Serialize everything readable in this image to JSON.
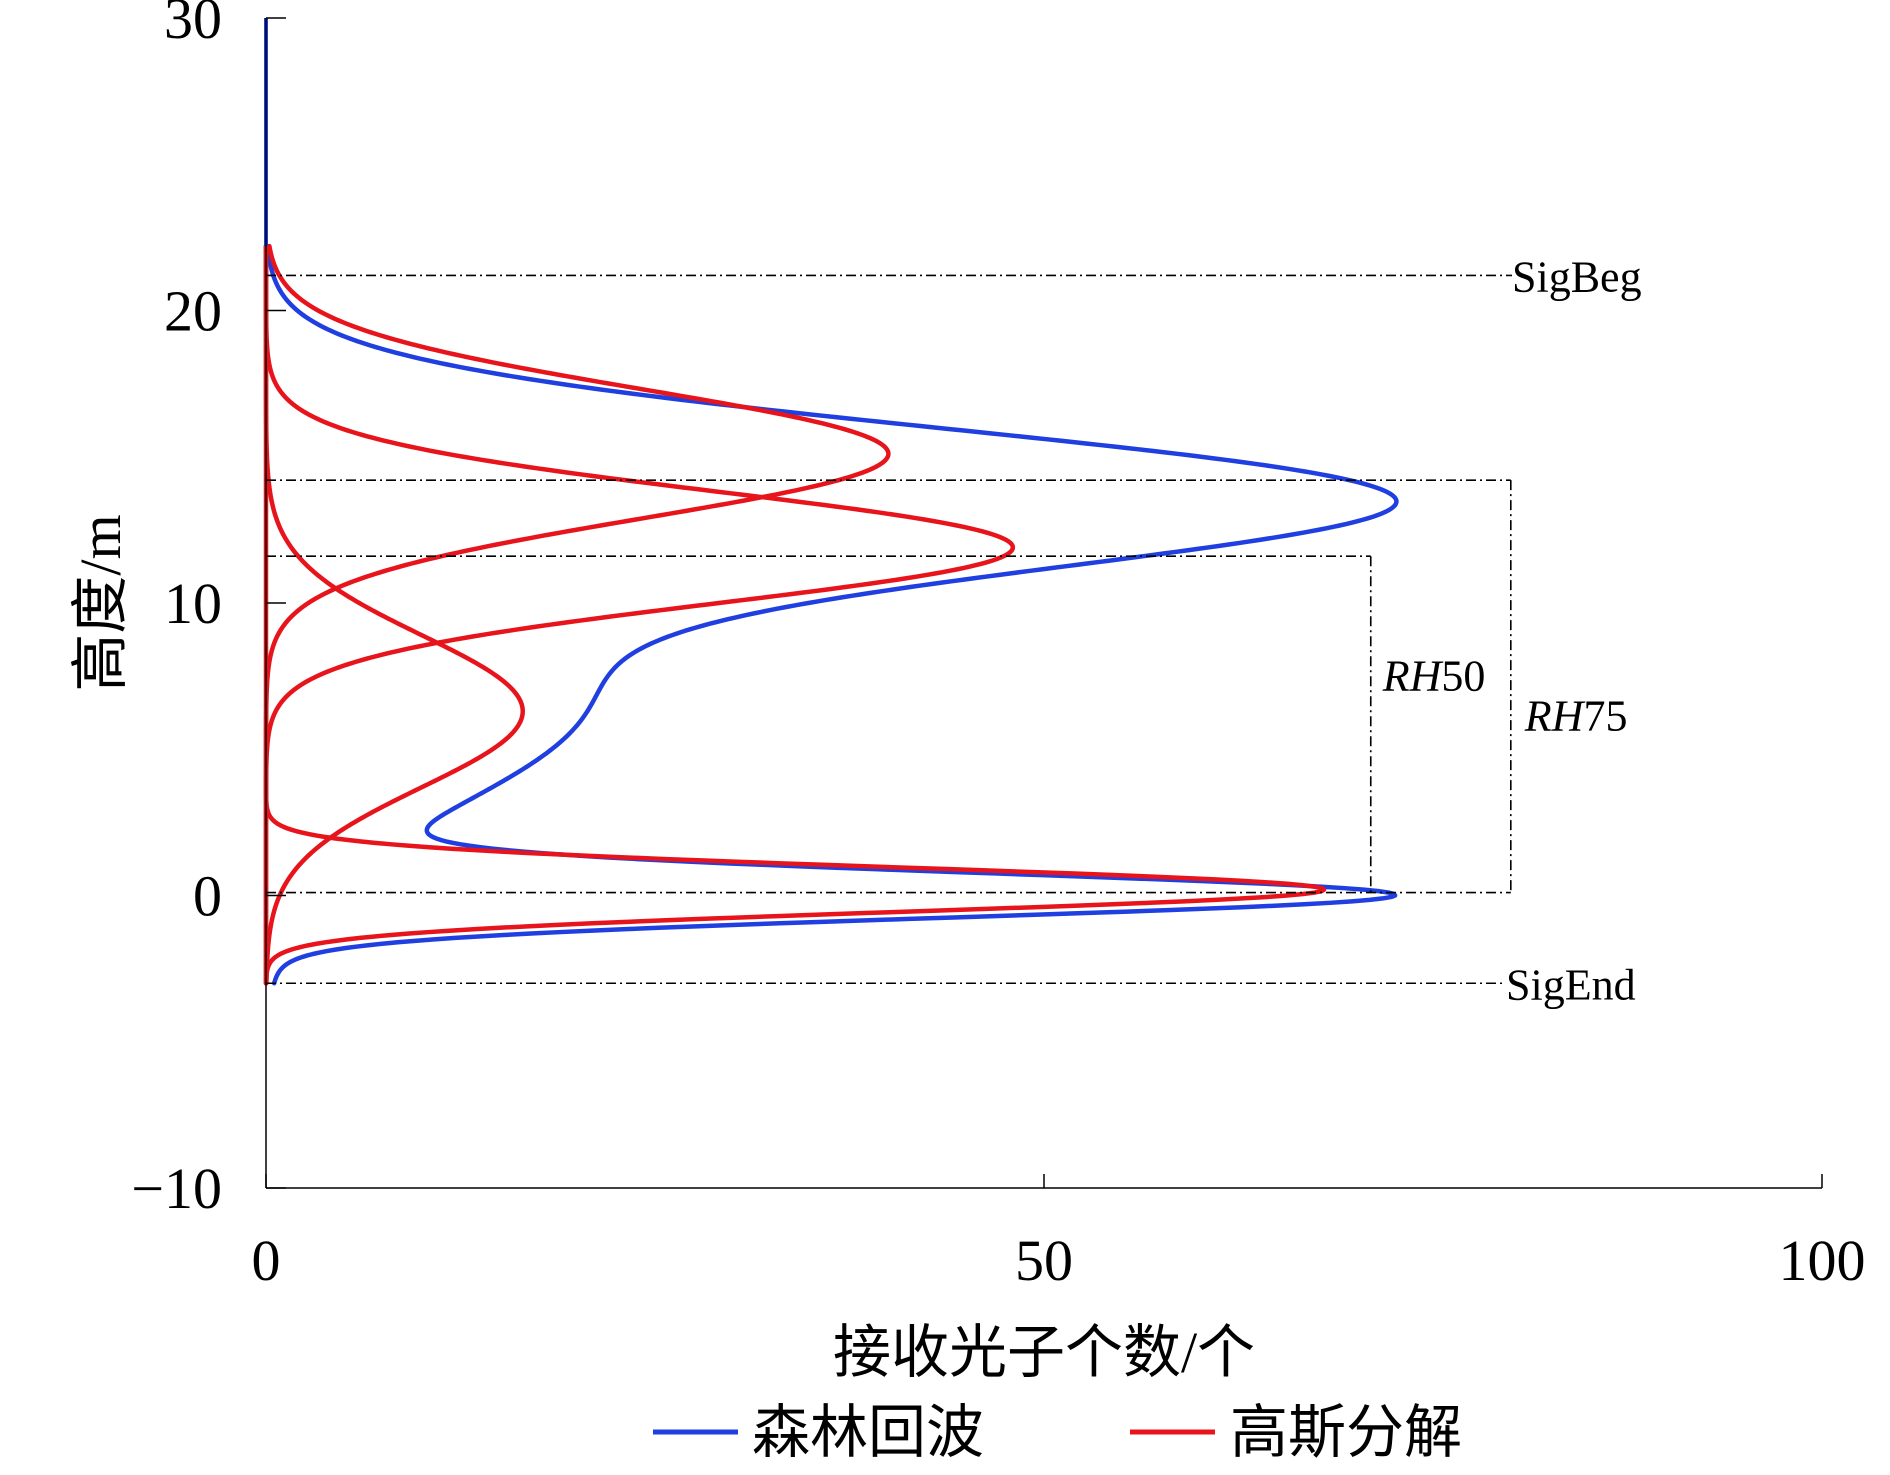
{
  "chart_data": {
    "type": "line",
    "title": "",
    "xlabel": "接收光子个数/个",
    "ylabel": "高度/m",
    "xlim": [
      0,
      100
    ],
    "ylim": [
      -10,
      30
    ],
    "x_ticks": [
      "0",
      "50",
      "100"
    ],
    "y_ticks": [
      "−10",
      "0",
      "10",
      "20",
      "30"
    ],
    "x_tick_values": [
      0,
      50,
      100
    ],
    "y_tick_values": [
      -10,
      0,
      10,
      20,
      30
    ],
    "grid": false,
    "legend_position": "bottom",
    "colors": {
      "forest": "#1f3fe0",
      "gauss": "#e8141c",
      "axis": "#000000"
    },
    "legend": [
      {
        "name": "森林回波",
        "color": "#1f3fe0"
      },
      {
        "name": "高斯分解",
        "color": "#e8141c"
      }
    ],
    "annotations": {
      "sig_beg": {
        "label": "SigBeg",
        "height": 21.2
      },
      "sig_end": {
        "label": "SigEnd",
        "height": -3.0
      },
      "ground_line": {
        "height": 0.1
      },
      "rh50": {
        "label_italic": "RH",
        "label_num": "50",
        "height": 11.6,
        "bracket_x": 71
      },
      "rh75": {
        "label_italic": "RH",
        "label_num": "75",
        "height": 14.2,
        "bracket_x": 80
      }
    },
    "series": [
      {
        "name": "森林回波",
        "color": "#1f3fe0",
        "components": [
          {
            "amplitude": 70,
            "center": 13.6,
            "sigma": 2.4
          },
          {
            "amplitude": 20,
            "center": 6.5,
            "sigma": 3.5
          },
          {
            "amplitude": 69,
            "center": 0.0,
            "sigma": 0.75
          }
        ]
      },
      {
        "name": "高斯分解 1",
        "color": "#e8141c",
        "amplitude": 40,
        "center": 15.1,
        "sigma": 2.2
      },
      {
        "name": "高斯分解 2",
        "color": "#e8141c",
        "amplitude": 48,
        "center": 11.9,
        "sigma": 1.9
      },
      {
        "name": "高斯分解 3",
        "color": "#e8141c",
        "amplitude": 16.5,
        "center": 6.3,
        "sigma": 2.6
      },
      {
        "name": "高斯分解 4",
        "color": "#e8141c",
        "amplitude": 68,
        "center": 0.2,
        "sigma": 0.75
      }
    ]
  }
}
